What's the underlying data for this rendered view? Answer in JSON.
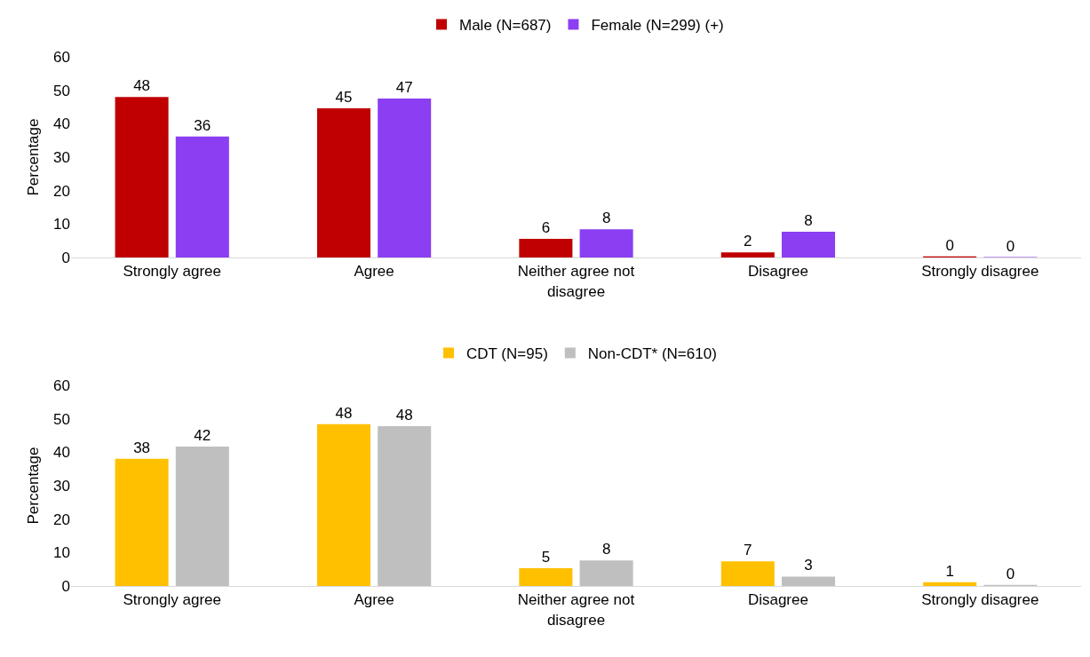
{
  "chart_data": [
    {
      "type": "bar",
      "ylabel": "Percentage",
      "categories": [
        "Strongly agree",
        "Agree",
        "Neither agree not disagree",
        "Disagree",
        "Strongly disagree"
      ],
      "series": [
        {
          "name": "Male (N=687)",
          "color": "#c00000",
          "values": [
            48,
            44.6,
            5.6,
            1.5,
            0.3
          ],
          "value_labels": [
            "48",
            "45",
            "6",
            "2",
            "0"
          ]
        },
        {
          "name": "Female (N=299) (+)",
          "color": "#8b3ef2",
          "values": [
            36.2,
            47.5,
            8.4,
            7.7,
            0.1
          ],
          "value_labels": [
            "36",
            "47",
            "8",
            "8",
            "0"
          ]
        }
      ],
      "ylim": [
        0,
        60
      ],
      "yticks": [
        0,
        10,
        20,
        30,
        40,
        50,
        60
      ],
      "grid": false,
      "legend": "top"
    },
    {
      "type": "bar",
      "ylabel": "Percentage",
      "categories": [
        "Strongly agree",
        "Agree",
        "Neither agree not disagree",
        "Disagree",
        "Strongly disagree"
      ],
      "series": [
        {
          "name": "CDT (N=95)",
          "color": "#ffc000",
          "values": [
            38,
            48.4,
            5.3,
            7.4,
            1.1
          ],
          "value_labels": [
            "38",
            "48",
            "5",
            "7",
            "1"
          ]
        },
        {
          "name": "Non-CDT* (N=610)",
          "color": "#bfbfbf",
          "values": [
            41.7,
            47.8,
            7.6,
            2.8,
            0.3
          ],
          "value_labels": [
            "42",
            "48",
            "8",
            "3",
            "0"
          ]
        }
      ],
      "ylim": [
        0,
        60
      ],
      "yticks": [
        0,
        10,
        20,
        30,
        40,
        50,
        60
      ],
      "grid": false,
      "legend": "top"
    }
  ]
}
